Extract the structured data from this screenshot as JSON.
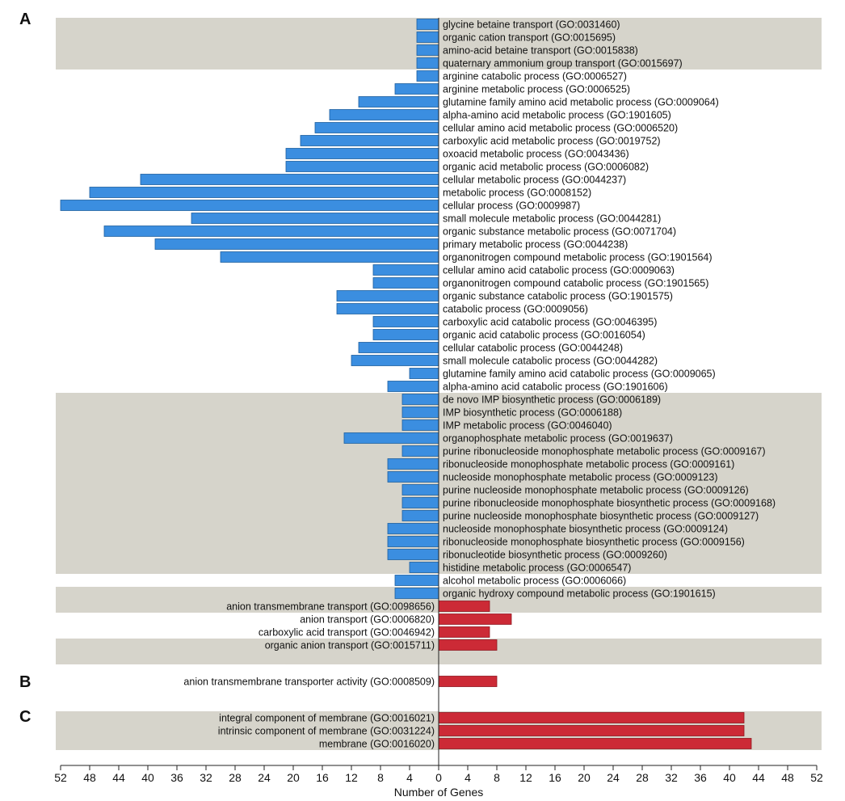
{
  "chart_data": {
    "type": "bar",
    "orientation": "horizontal-diverging",
    "xlabel": "Number of Genes",
    "xlim": [
      -52,
      52
    ],
    "tick_values": [
      -52,
      -48,
      -44,
      -40,
      -36,
      -32,
      -28,
      -24,
      -20,
      -16,
      -12,
      -8,
      -4,
      0,
      4,
      8,
      12,
      16,
      20,
      24,
      28,
      32,
      36,
      40,
      44,
      48,
      52
    ],
    "tick_labels": [
      "52",
      "48",
      "44",
      "40",
      "36",
      "32",
      "28",
      "24",
      "20",
      "16",
      "12",
      "8",
      "4",
      "0",
      "4",
      "8",
      "12",
      "16",
      "20",
      "24",
      "28",
      "32",
      "36",
      "40",
      "44",
      "48",
      "52"
    ],
    "colors": {
      "down": "#3b8ee0",
      "down_edge": "#1f5f9e",
      "up": "#cc2a36",
      "up_edge": "#8f1620",
      "band": "#d6d4cb",
      "axis": "#222222"
    },
    "panels": [
      {
        "letter": "A",
        "bands": [
          [
            0,
            3
          ],
          [
            29,
            42
          ],
          [
            44,
            45
          ],
          [
            48,
            49
          ]
        ],
        "terms": [
          {
            "label": "glycine betaine transport (GO:0031460)",
            "value": -3
          },
          {
            "label": "organic cation transport (GO:0015695)",
            "value": -3
          },
          {
            "label": "amino-acid betaine transport (GO:0015838)",
            "value": -3
          },
          {
            "label": "quaternary ammonium group transport (GO:0015697)",
            "value": -3
          },
          {
            "label": "arginine catabolic process (GO:0006527)",
            "value": -3
          },
          {
            "label": "arginine metabolic process (GO:0006525)",
            "value": -6
          },
          {
            "label": "glutamine family amino acid metabolic process (GO:0009064)",
            "value": -11
          },
          {
            "label": "alpha-amino acid metabolic process (GO:1901605)",
            "value": -15
          },
          {
            "label": "cellular amino acid metabolic process (GO:0006520)",
            "value": -17
          },
          {
            "label": "carboxylic acid metabolic process (GO:0019752)",
            "value": -19
          },
          {
            "label": "oxoacid metabolic process (GO:0043436)",
            "value": -21
          },
          {
            "label": "organic acid metabolic process (GO:0006082)",
            "value": -21
          },
          {
            "label": "cellular metabolic process (GO:0044237)",
            "value": -41
          },
          {
            "label": "metabolic process (GO:0008152)",
            "value": -48
          },
          {
            "label": "cellular process (GO:0009987)",
            "value": -52
          },
          {
            "label": "small molecule metabolic process (GO:0044281)",
            "value": -34
          },
          {
            "label": "organic substance metabolic process (GO:0071704)",
            "value": -46
          },
          {
            "label": "primary metabolic process (GO:0044238)",
            "value": -39
          },
          {
            "label": "organonitrogen compound metabolic process (GO:1901564)",
            "value": -30
          },
          {
            "label": "cellular amino acid catabolic process (GO:0009063)",
            "value": -9
          },
          {
            "label": "organonitrogen compound catabolic process (GO:1901565)",
            "value": -9
          },
          {
            "label": "organic substance catabolic process (GO:1901575)",
            "value": -14
          },
          {
            "label": "catabolic process (GO:0009056)",
            "value": -14
          },
          {
            "label": "carboxylic acid catabolic process (GO:0046395)",
            "value": -9
          },
          {
            "label": "organic acid catabolic process (GO:0016054)",
            "value": -9
          },
          {
            "label": "cellular catabolic process (GO:0044248)",
            "value": -11
          },
          {
            "label": "small molecule catabolic process (GO:0044282)",
            "value": -12
          },
          {
            "label": "glutamine family amino acid catabolic process (GO:0009065)",
            "value": -4
          },
          {
            "label": "alpha-amino acid catabolic process (GO:1901606)",
            "value": -7
          },
          {
            "label": "de novo IMP biosynthetic process (GO:0006189)",
            "value": -5
          },
          {
            "label": "IMP biosynthetic process (GO:0006188)",
            "value": -5
          },
          {
            "label": "IMP metabolic process (GO:0046040)",
            "value": -5
          },
          {
            "label": "organophosphate metabolic process (GO:0019637)",
            "value": -13
          },
          {
            "label": "purine ribonucleoside monophosphate metabolic process (GO:0009167)",
            "value": -5
          },
          {
            "label": "ribonucleoside monophosphate metabolic process (GO:0009161)",
            "value": -7
          },
          {
            "label": "nucleoside monophosphate metabolic process (GO:0009123)",
            "value": -7
          },
          {
            "label": "purine nucleoside monophosphate metabolic process (GO:0009126)",
            "value": -5
          },
          {
            "label": "purine ribonucleoside monophosphate biosynthetic process (GO:0009168)",
            "value": -5
          },
          {
            "label": "purine nucleoside monophosphate biosynthetic process (GO:0009127)",
            "value": -5
          },
          {
            "label": "nucleoside monophosphate biosynthetic process (GO:0009124)",
            "value": -7
          },
          {
            "label": "ribonucleoside monophosphate biosynthetic process (GO:0009156)",
            "value": -7
          },
          {
            "label": "ribonucleotide biosynthetic process (GO:0009260)",
            "value": -7
          },
          {
            "label": "histidine metabolic process (GO:0006547)",
            "value": -4
          },
          {
            "label": "alcohol metabolic process (GO:0006066)",
            "value": -6
          },
          {
            "label": "organic hydroxy compound metabolic process (GO:1901615)",
            "value": -6
          },
          {
            "label": "anion transmembrane transport (GO:0098656)",
            "value": 7
          },
          {
            "label": "anion transport (GO:0006820)",
            "value": 10
          },
          {
            "label": "carboxylic acid transport (GO:0046942)",
            "value": 7
          },
          {
            "label": "organic anion transport (GO:0015711)",
            "value": 8
          }
        ]
      },
      {
        "letter": "B",
        "bands": [],
        "terms": [
          {
            "label": "anion transmembrane transporter activity (GO:0008509)",
            "value": 8
          }
        ]
      },
      {
        "letter": "C",
        "bands": [
          [
            0,
            2
          ]
        ],
        "terms": [
          {
            "label": "integral component of membrane (GO:0016021)",
            "value": 42
          },
          {
            "label": "intrinsic component of membrane (GO:0031224)",
            "value": 42
          },
          {
            "label": "membrane (GO:0016020)",
            "value": 43
          }
        ]
      }
    ]
  }
}
